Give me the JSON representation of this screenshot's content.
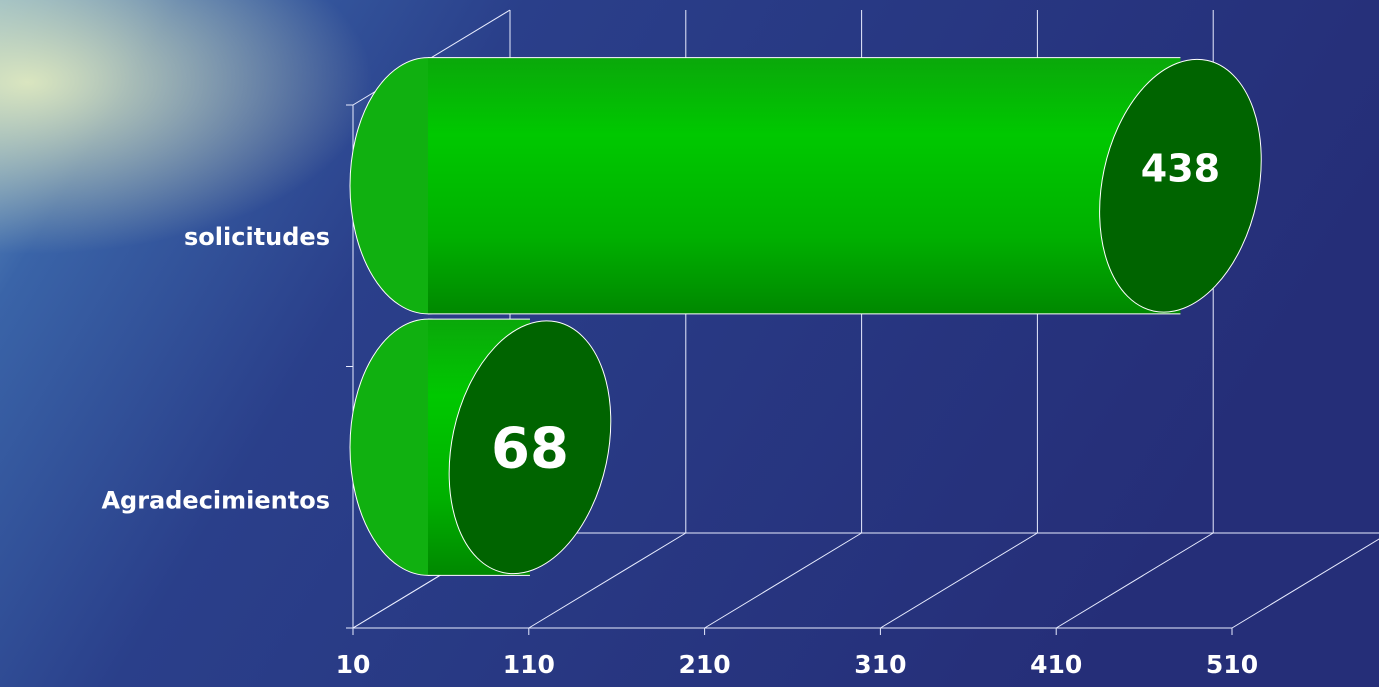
{
  "chart_data": {
    "type": "bar",
    "orientation": "horizontal",
    "categories": [
      "solicitudes",
      "Agradecimientos"
    ],
    "values": [
      438,
      68
    ],
    "color": "#00c000",
    "cap_color": "#006400",
    "xlim": [
      10,
      510
    ],
    "xticks": [
      10,
      110,
      210,
      310,
      410,
      510
    ],
    "grid": true
  }
}
